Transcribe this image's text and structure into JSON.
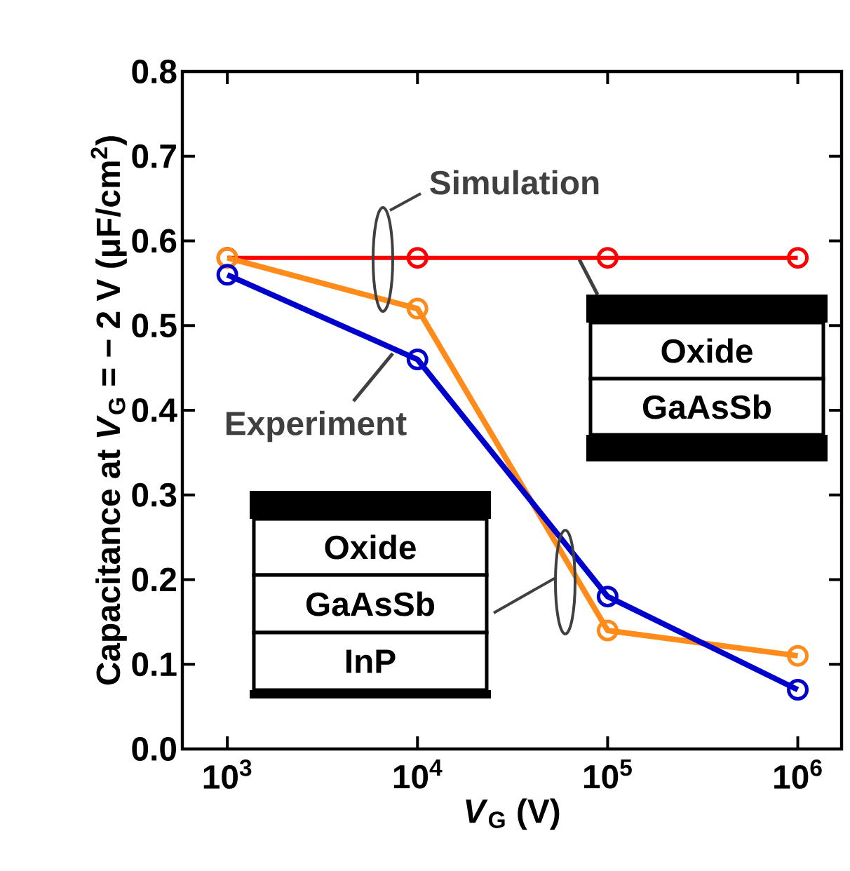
{
  "chart_data": {
    "type": "line",
    "xlabel": "*V*$_{G}$ (V)",
    "ylabel": "Capacitance at *V*$_{G}$ = − 2 V (μF/cm$^{2}$)",
    "x": [
      1000,
      10000,
      100000,
      1000000
    ],
    "series": [
      {
        "color": "#ff0000",
        "values": [
          0.58,
          0.58,
          0.58,
          0.58
        ]
      },
      {
        "color": "#ff8c1a",
        "values": [
          0.58,
          0.52,
          0.14,
          0.11
        ]
      },
      {
        "color": "#0000cc",
        "values": [
          0.56,
          0.46,
          0.18,
          0.07
        ]
      }
    ],
    "log": "x",
    "marker": "circle",
    "line_style": "solid",
    "grid": false,
    "xlim": [
      580,
      1700000
    ],
    "ylim": [
      0,
      0.8
    ],
    "xticks": [
      {
        "value": 1000,
        "label": "10$^{3}$"
      },
      {
        "value": 10000,
        "label": "10$^{4}$"
      },
      {
        "value": 100000,
        "label": "10$^{5}$"
      },
      {
        "value": 1000000,
        "label": "10$^{6}$"
      }
    ],
    "yticks": [
      {
        "value": 0,
        "label": "0.0"
      },
      {
        "value": 0.1,
        "label": "0.1"
      },
      {
        "value": 0.2,
        "label": "0.2"
      },
      {
        "value": 0.3,
        "label": "0.3"
      },
      {
        "value": 0.4,
        "label": "0.4"
      },
      {
        "value": 0.5,
        "label": "0.5"
      },
      {
        "value": 0.6,
        "label": "0.6"
      },
      {
        "value": 0.7,
        "label": "0.7"
      },
      {
        "value": 0.8,
        "label": "0.8"
      }
    ],
    "annotations": [
      "Simulation",
      "Experiment",
      "Oxide",
      "GaAsSb",
      "Oxide",
      "GaAsSb",
      "InP"
    ]
  }
}
